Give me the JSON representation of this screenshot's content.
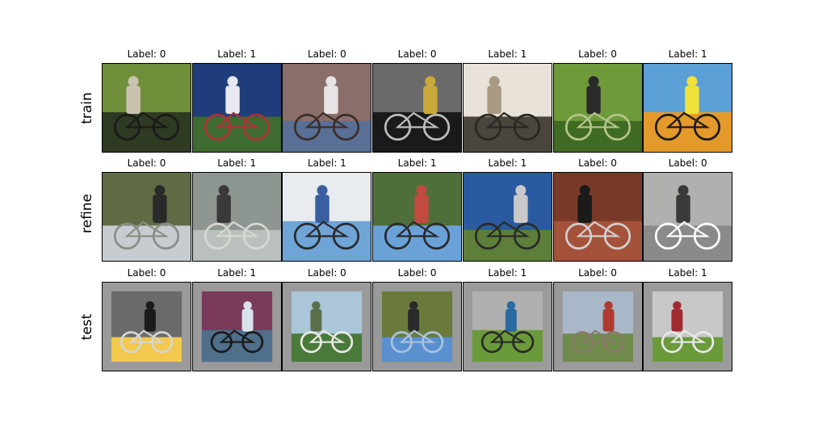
{
  "rows": [
    {
      "name": "train",
      "items": [
        {
          "label": "Label: 0",
          "scene": "mountain-bike-rider-ferns",
          "palette": [
            "#2f3a22",
            "#6f8f3a",
            "#c9c2b0",
            "#1a1a1a"
          ],
          "padded": false
        },
        {
          "label": "Label: 1",
          "scene": "tandem-riders-jerseys",
          "palette": [
            "#3e6b2f",
            "#1f3d7a",
            "#e8e8f0",
            "#b0303a"
          ],
          "padded": false
        },
        {
          "label": "Label: 0",
          "scene": "rider-mountain-peaks",
          "palette": [
            "#5a6f95",
            "#8a6e6a",
            "#e6e2e6",
            "#3a2e2a"
          ],
          "padded": false
        },
        {
          "label": "Label: 0",
          "scene": "yellow-bike-grayscale-road",
          "palette": [
            "#1a1a1a",
            "#6a6a6a",
            "#c9a93a",
            "#bdbdbd"
          ],
          "padded": false
        },
        {
          "label": "Label: 1",
          "scene": "tandem-rear-riders",
          "palette": [
            "#4a463e",
            "#e8e2d8",
            "#a89a82",
            "#2a2622"
          ],
          "padded": false
        },
        {
          "label": "Label: 0",
          "scene": "bike-motion-blur-green",
          "palette": [
            "#3f6b23",
            "#6f9a3a",
            "#2a2a2a",
            "#b6c48a"
          ],
          "padded": false
        },
        {
          "label": "Label: 1",
          "scene": "yellow-tandem-illustration",
          "palette": [
            "#e39a2b",
            "#5a9fd6",
            "#f0e23a",
            "#1a1a1a"
          ],
          "padded": false
        }
      ]
    },
    {
      "name": "refine",
      "items": [
        {
          "label": "Label: 0",
          "scene": "bike-hillside-fog",
          "palette": [
            "#c7ccd0",
            "#5f6b45",
            "#2a2a2a",
            "#8a8e86"
          ],
          "padded": false
        },
        {
          "label": "Label: 1",
          "scene": "tandem-glass-wall",
          "palette": [
            "#b9c0bd",
            "#8e9692",
            "#3a3a3a",
            "#d8d8d2"
          ],
          "padded": false
        },
        {
          "label": "Label: 1",
          "scene": "tandem-snow-cars",
          "palette": [
            "#6fa4d6",
            "#e8ecef",
            "#3a5fa0",
            "#2a2a2a"
          ],
          "padded": false
        },
        {
          "label": "Label: 1",
          "scene": "tandem-group-road",
          "palette": [
            "#6aa2d8",
            "#4f6f3a",
            "#c24a40",
            "#2a2a2a"
          ],
          "padded": false
        },
        {
          "label": "Label: 1",
          "scene": "tandem-riders-trees",
          "palette": [
            "#5d7f3a",
            "#2a5aa0",
            "#c9c9c9",
            "#2a2a2a"
          ],
          "padded": false
        },
        {
          "label": "Label: 0",
          "scene": "bike-brick-wall",
          "palette": [
            "#a5523a",
            "#7a3a2a",
            "#1a1a1a",
            "#d0d0d0"
          ],
          "padded": false
        },
        {
          "label": "Label: 0",
          "scene": "bikes-pile-ground",
          "palette": [
            "#8a8a88",
            "#b0b0ae",
            "#3a3a3a",
            "#ffffff"
          ],
          "padded": false
        }
      ]
    },
    {
      "name": "test",
      "items": [
        {
          "label": "Label: 0",
          "scene": "riders-balcony",
          "palette": [
            "#f2c94c",
            "#6a6a6a",
            "#1a1a1a",
            "#d6d6d6"
          ],
          "padded": true
        },
        {
          "label": "Label: 1",
          "scene": "saddle-closeup-sky",
          "palette": [
            "#4f6f8a",
            "#7a3a5a",
            "#d8e2ea",
            "#1a1a1a"
          ],
          "padded": true
        },
        {
          "label": "Label: 0",
          "scene": "bike-lying-grass",
          "palette": [
            "#4a7a3a",
            "#aac6d8",
            "#5a6f4a",
            "#e8e8e8"
          ],
          "padded": true
        },
        {
          "label": "Label: 0",
          "scene": "bike-jump-sky",
          "palette": [
            "#5a8fd0",
            "#6a7a3a",
            "#2a2a2a",
            "#a8c4e0"
          ],
          "padded": true
        },
        {
          "label": "Label: 1",
          "scene": "tandem-grass-field",
          "palette": [
            "#6a9a3a",
            "#b0b0b0",
            "#2a6aa0",
            "#2a2a2a"
          ],
          "padded": true
        },
        {
          "label": "Label: 0",
          "scene": "rider-mountain-trail",
          "palette": [
            "#6f8a4a",
            "#a8b8c8",
            "#b03a30",
            "#8a7a6a"
          ],
          "padded": true
        },
        {
          "label": "Label: 1",
          "scene": "red-tandem-path",
          "palette": [
            "#6a9a3a",
            "#c8c8c8",
            "#a02a30",
            "#e8e8e8"
          ],
          "padded": true
        }
      ]
    }
  ]
}
